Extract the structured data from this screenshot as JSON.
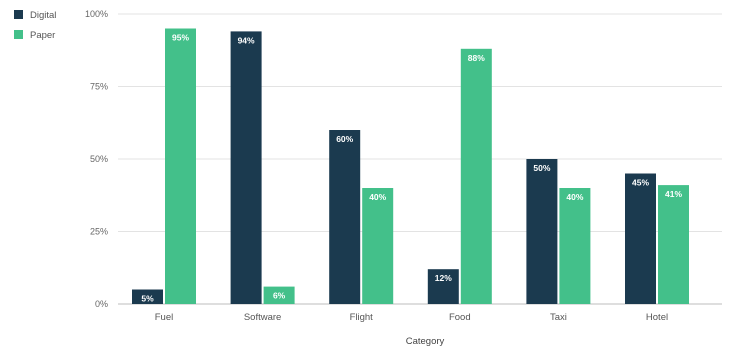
{
  "chart_data": {
    "type": "bar",
    "categories": [
      "Fuel",
      "Software",
      "Flight",
      "Food",
      "Taxi",
      "Hotel"
    ],
    "series": [
      {
        "name": "Digital",
        "color": "#1b3a4f",
        "values": [
          5,
          94,
          60,
          12,
          50,
          45
        ]
      },
      {
        "name": "Paper",
        "color": "#43c08a",
        "values": [
          95,
          6,
          40,
          88,
          40,
          41
        ]
      }
    ],
    "data_labels": [
      [
        "5%",
        "94%",
        "60%",
        "12%",
        "50%",
        "45%"
      ],
      [
        "95%",
        "6%",
        "40%",
        "88%",
        "40%",
        "41%"
      ]
    ],
    "yticks": [
      0,
      25,
      50,
      75,
      100
    ],
    "ytick_labels": [
      "0%",
      "25%",
      "50%",
      "75%",
      "100%"
    ],
    "ylim": [
      0,
      100
    ],
    "title": "",
    "xlabel": "Category",
    "ylabel": "",
    "grid": true,
    "legend_position": "top-left"
  }
}
